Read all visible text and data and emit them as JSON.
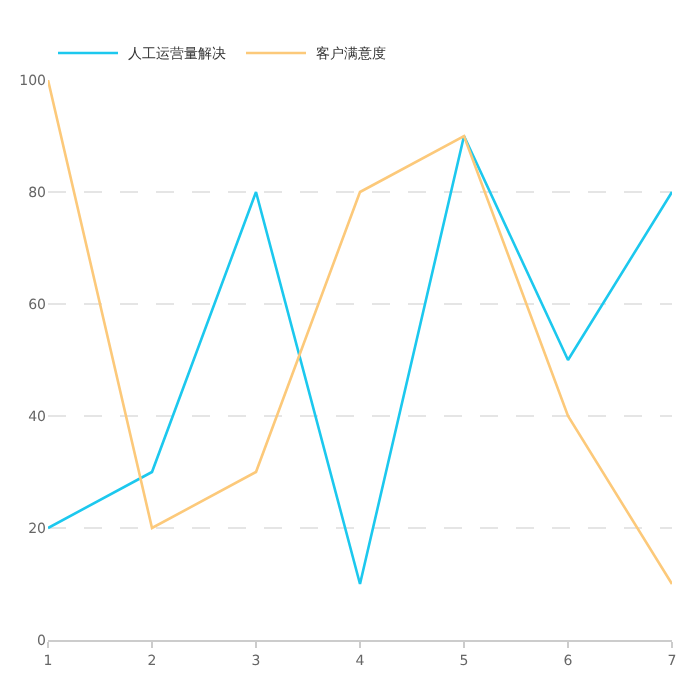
{
  "chart_data": {
    "type": "line",
    "x": [
      1,
      2,
      3,
      4,
      5,
      6,
      7
    ],
    "series": [
      {
        "name": "人工运营量解决",
        "color": "#1cc8ee",
        "values": [
          20,
          30,
          80,
          10,
          90,
          50,
          80
        ]
      },
      {
        "name": "客户满意度",
        "color": "#fcc97a",
        "values": [
          100,
          20,
          30,
          80,
          90,
          40,
          10
        ]
      }
    ],
    "xlim": [
      1,
      7
    ],
    "xticks": [
      1,
      2,
      3,
      4,
      5,
      6,
      7
    ],
    "ylim": [
      0,
      100
    ],
    "yticks": [
      0,
      20,
      40,
      60,
      80,
      100
    ],
    "grid": "y",
    "legend": "top left",
    "marker": "none",
    "line_style": "solid"
  }
}
